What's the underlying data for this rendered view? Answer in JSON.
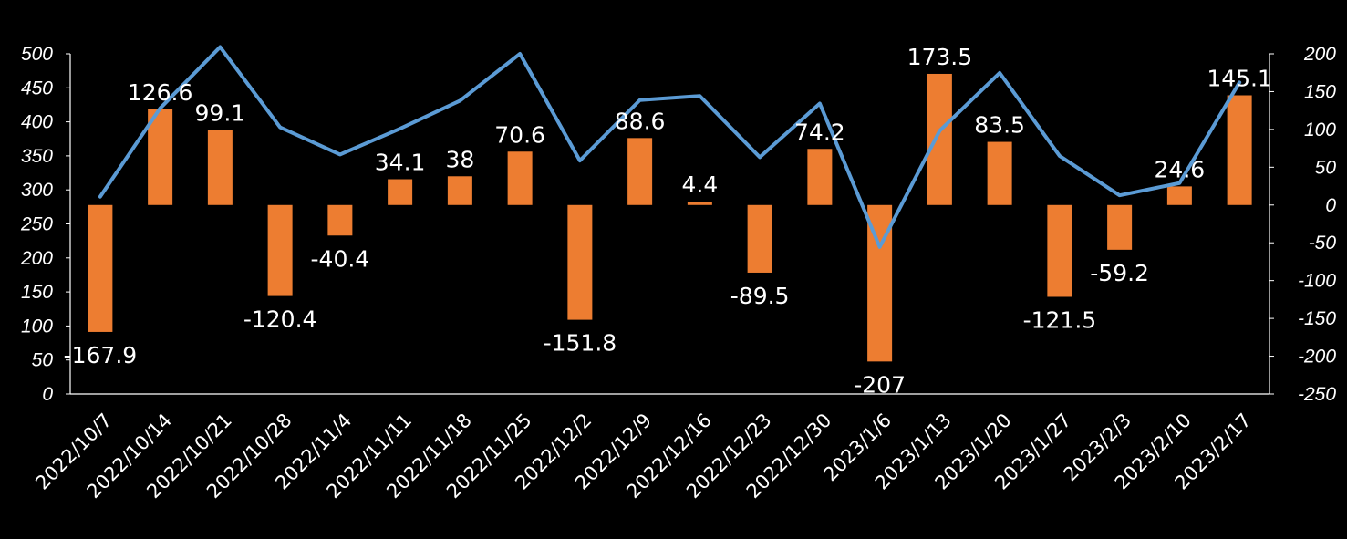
{
  "chart_data": {
    "type": "bar+line",
    "categories": [
      "2022/10/7",
      "2022/10/14",
      "2022/10/21",
      "2022/10/28",
      "2022/11/4",
      "2022/11/11",
      "2022/11/18",
      "2022/11/25",
      "2022/12/2",
      "2022/12/9",
      "2022/12/16",
      "2022/12/23",
      "2022/12/30",
      "2023/1/6",
      "2023/1/13",
      "2023/1/20",
      "2023/1/27",
      "2023/2/3",
      "2023/2/10",
      "2023/2/17"
    ],
    "series": [
      {
        "name": "bars",
        "type": "bar",
        "axis": "right",
        "color": "#ed7d31",
        "values": [
          -167.9,
          126.6,
          99.1,
          -120.4,
          -40.4,
          34.1,
          38,
          70.6,
          -151.8,
          88.6,
          4.4,
          -89.5,
          74.2,
          -207,
          173.5,
          83.5,
          -121.5,
          -59.2,
          24.6,
          145.1
        ],
        "labels": [
          "-167.9",
          "126.6",
          "99.1",
          "-120.4",
          "-40.4",
          "34.1",
          "38",
          "70.6",
          "-151.8",
          "88.6",
          "4.4",
          "-89.5",
          "74.2",
          "-207",
          "173.5",
          "83.5",
          "-121.5",
          "-59.2",
          "24.6",
          "145.1"
        ]
      },
      {
        "name": "line",
        "type": "line",
        "axis": "left",
        "color": "#5b9bd5",
        "values": [
          290,
          420,
          510,
          392,
          352,
          390,
          431,
          500,
          343,
          432,
          438,
          348,
          427,
          216,
          387,
          472,
          350,
          292,
          310,
          458
        ]
      }
    ],
    "left_axis": {
      "min": 0,
      "max": 500,
      "ticks": [
        "0",
        "50",
        "100",
        "150",
        "200",
        "250",
        "300",
        "350",
        "400",
        "450",
        "500"
      ]
    },
    "right_axis": {
      "min": -250,
      "max": 200,
      "ticks": [
        "-250",
        "-200",
        "-150",
        "-100",
        "-50",
        "0",
        "50",
        "100",
        "150",
        "200"
      ]
    },
    "legend": "none",
    "grid": false
  }
}
